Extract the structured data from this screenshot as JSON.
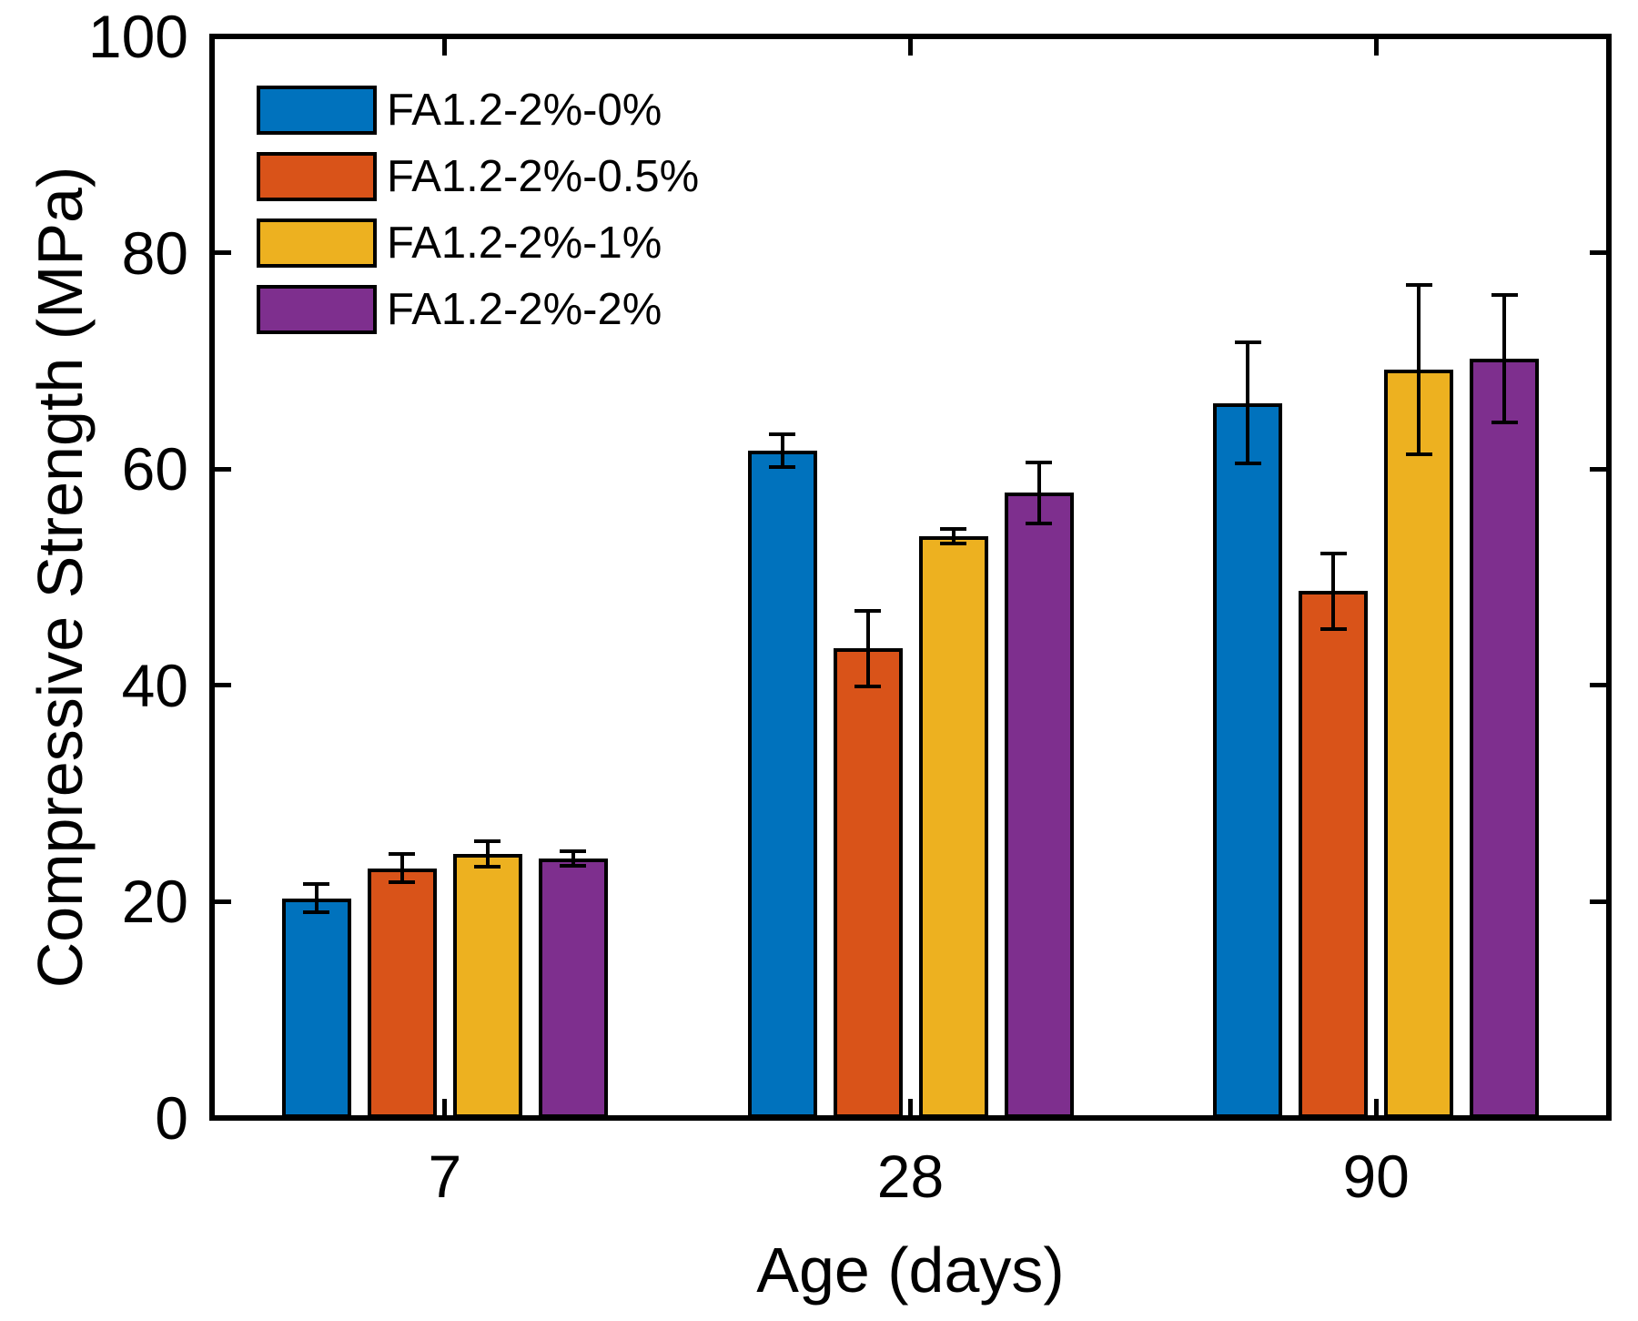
{
  "chart_data": {
    "type": "bar",
    "title": "",
    "xlabel": "Age (days)",
    "ylabel": "Compressive Strength (MPa)",
    "categories": [
      "7",
      "28",
      "90"
    ],
    "series": [
      {
        "name": "FA1.2-2%-0%",
        "color": "#0072BD",
        "values": [
          20.3,
          61.7,
          66.1
        ],
        "errors": [
          1.3,
          1.5,
          5.6
        ]
      },
      {
        "name": "FA1.2-2%-0.5%",
        "color": "#D95319",
        "values": [
          23.1,
          43.4,
          48.7
        ],
        "errors": [
          1.3,
          3.5,
          3.5
        ]
      },
      {
        "name": "FA1.2-2%-1%",
        "color": "#EDB120",
        "values": [
          24.4,
          53.8,
          69.2
        ],
        "errors": [
          1.2,
          0.7,
          7.8
        ]
      },
      {
        "name": "FA1.2-2%-2%",
        "color": "#7E2F8E",
        "values": [
          24.0,
          57.8,
          70.2
        ],
        "errors": [
          0.7,
          2.8,
          5.9
        ]
      }
    ],
    "ylim": [
      0,
      100
    ],
    "yticks": [
      0,
      20,
      40,
      60,
      80,
      100
    ],
    "grid": false,
    "legend_position": "top-left-inside",
    "legend_frame": false,
    "axis_color": "#000000",
    "bar_edge_color": "#000000",
    "error_bar_color": "#000000",
    "tick_direction": "in",
    "box": true
  }
}
